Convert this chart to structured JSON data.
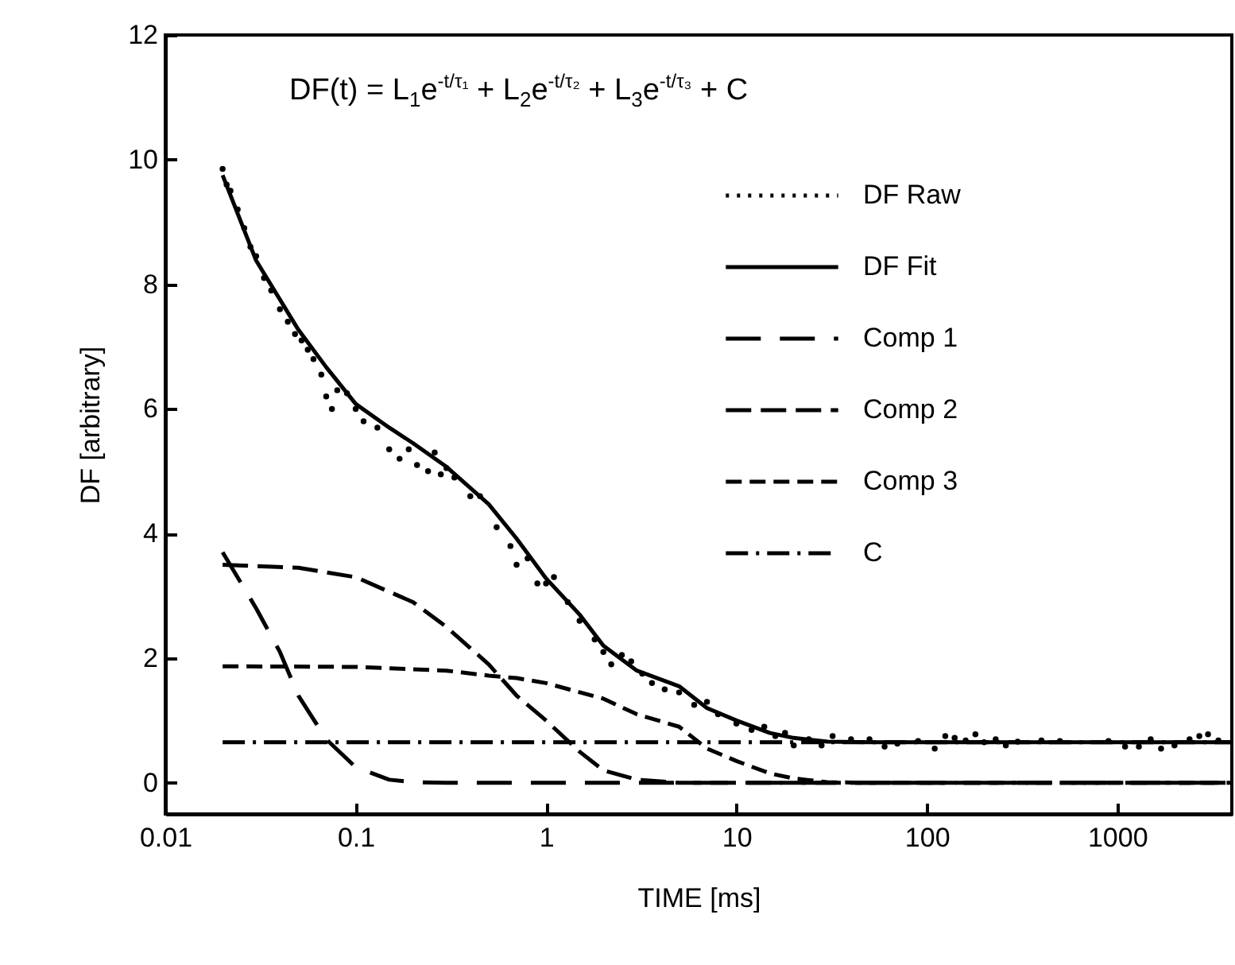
{
  "chart_data": {
    "type": "line",
    "xlabel": "TIME [ms]",
    "ylabel": "DF [arbitrary]",
    "log": "x",
    "xlim": [
      0.01,
      4000
    ],
    "xticks": [
      0.01,
      0.1,
      1,
      10,
      100,
      1000
    ],
    "ylim": [
      -0.5,
      12
    ],
    "yticks": [
      0,
      2,
      4,
      6,
      8,
      10,
      12
    ],
    "grid": false,
    "legend": "top right",
    "annotations": [
      "DF(t) = L$_{1}$e$^{-t/τ₁}$ + L$_{2}$e$^{-t/τ₂}$ + L$_{3}$e$^{-t/τ₃}$ + C"
    ],
    "series": [
      {
        "name": "DF Raw",
        "type": "scatter",
        "marker": "circle",
        "line_style": "dotted",
        "color": "#000000",
        "x": [
          0.02,
          0.021,
          0.022,
          0.024,
          0.026,
          0.028,
          0.03,
          0.033,
          0.036,
          0.04,
          0.044,
          0.048,
          0.052,
          0.056,
          0.06,
          0.066,
          0.07,
          0.075,
          0.08,
          0.09,
          0.1,
          0.11,
          0.13,
          0.15,
          0.17,
          0.19,
          0.21,
          0.24,
          0.26,
          0.28,
          0.3,
          0.33,
          0.4,
          0.45,
          0.55,
          0.65,
          0.7,
          0.8,
          0.9,
          1,
          1.1,
          1.3,
          1.5,
          1.8,
          2,
          2.2,
          2.5,
          2.8,
          3.2,
          3.6,
          4.2,
          5,
          6,
          7,
          8,
          10,
          12,
          14,
          16,
          18,
          20,
          24,
          28,
          32,
          40,
          50,
          60,
          70,
          90,
          110,
          125,
          140,
          160,
          180,
          200,
          230,
          260,
          300,
          400,
          500,
          900,
          1100,
          1300,
          1500,
          1700,
          2000,
          2400,
          2700,
          3000,
          3400
        ],
        "values": [
          9.85,
          9.6,
          9.5,
          9.2,
          8.9,
          8.6,
          8.45,
          8.1,
          7.9,
          7.6,
          7.4,
          7.2,
          7.1,
          6.95,
          6.8,
          6.55,
          6.2,
          6.0,
          6.3,
          6.25,
          6.0,
          5.8,
          5.7,
          5.35,
          5.2,
          5.35,
          5.1,
          5.0,
          5.3,
          4.95,
          5.05,
          4.9,
          4.6,
          4.6,
          4.1,
          3.8,
          3.5,
          3.6,
          3.2,
          3.2,
          3.3,
          2.9,
          2.6,
          2.3,
          2.1,
          1.9,
          2.05,
          1.95,
          1.75,
          1.6,
          1.5,
          1.45,
          1.25,
          1.3,
          1.1,
          0.95,
          0.85,
          0.9,
          0.75,
          0.8,
          0.6,
          0.7,
          0.6,
          0.75,
          0.7,
          0.7,
          0.58,
          0.63,
          0.67,
          0.55,
          0.75,
          0.72,
          0.68,
          0.78,
          0.65,
          0.7,
          0.6,
          0.66,
          0.68,
          0.67,
          0.67,
          0.58,
          0.58,
          0.7,
          0.55,
          0.6,
          0.7,
          0.75,
          0.78,
          0.68
        ]
      },
      {
        "name": "DF Fit",
        "type": "line",
        "line_style": "solid",
        "color": "#000000",
        "x": [
          0.02,
          0.03,
          0.05,
          0.07,
          0.1,
          0.15,
          0.2,
          0.3,
          0.5,
          0.7,
          1,
          1.5,
          2,
          3,
          5,
          7,
          10,
          15,
          20,
          30,
          50,
          100,
          300,
          1000,
          4000
        ],
        "values": [
          9.75,
          8.38,
          7.27,
          6.67,
          6.08,
          5.7,
          5.45,
          5.07,
          4.47,
          3.92,
          3.28,
          2.7,
          2.2,
          1.8,
          1.55,
          1.2,
          1.0,
          0.8,
          0.72,
          0.66,
          0.65,
          0.65,
          0.65,
          0.65,
          0.65
        ]
      },
      {
        "name": "Comp 1",
        "type": "line",
        "line_style": "dashed",
        "color": "#000000",
        "x": [
          0.02,
          0.03,
          0.04,
          0.05,
          0.07,
          0.1,
          0.15,
          0.2,
          0.3,
          1,
          10,
          100,
          1000,
          4000
        ],
        "values": [
          3.7,
          2.8,
          2.1,
          1.4,
          0.7,
          0.25,
          0.05,
          0.01,
          0,
          0,
          0,
          0,
          0,
          0
        ]
      },
      {
        "name": "Comp 2",
        "type": "line",
        "line_style": "dashed",
        "color": "#000000",
        "x": [
          0.02,
          0.05,
          0.1,
          0.2,
          0.3,
          0.5,
          0.7,
          1,
          1.5,
          2,
          3,
          5,
          10,
          100,
          1000,
          4000
        ],
        "values": [
          3.5,
          3.45,
          3.3,
          2.9,
          2.5,
          1.9,
          1.4,
          1.0,
          0.5,
          0.2,
          0.05,
          0,
          0,
          0,
          0,
          0
        ]
      },
      {
        "name": "Comp 3",
        "type": "line",
        "line_style": "dashed",
        "color": "#000000",
        "x": [
          0.02,
          0.1,
          0.3,
          0.5,
          0.7,
          1,
          2,
          3,
          5,
          7,
          10,
          15,
          20,
          30,
          50,
          100,
          1000,
          4000
        ],
        "values": [
          1.87,
          1.86,
          1.8,
          1.72,
          1.68,
          1.6,
          1.35,
          1.1,
          0.9,
          0.55,
          0.35,
          0.15,
          0.07,
          0.01,
          0,
          0,
          0,
          0
        ]
      },
      {
        "name": "C",
        "type": "line",
        "line_style": "dashed",
        "color": "#000000",
        "x": [
          0.02,
          4000
        ],
        "values": [
          0.65,
          0.65
        ]
      }
    ]
  }
}
